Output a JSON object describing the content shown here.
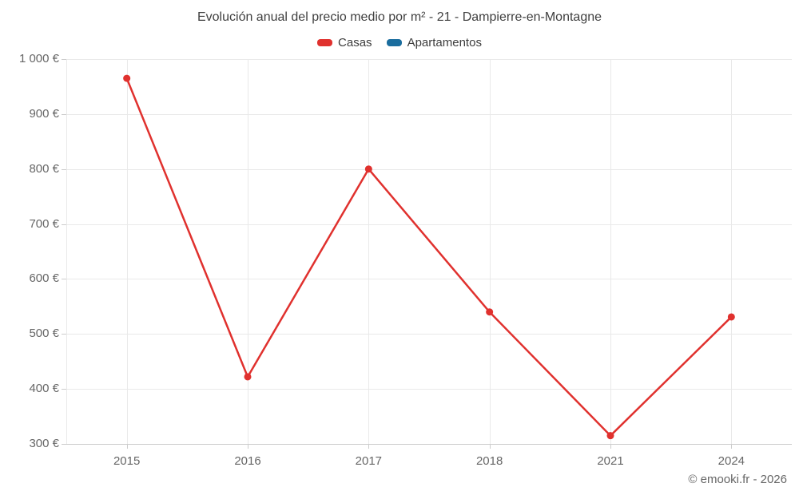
{
  "chart_data": {
    "type": "line",
    "title": "Evolución anual del precio medio por m² - 21 - Dampierre-en-Montagne",
    "categories": [
      "2015",
      "2016",
      "2017",
      "2018",
      "2021",
      "2024"
    ],
    "series": [
      {
        "name": "Casas",
        "color": "#e0312e",
        "values": [
          965,
          422,
          800,
          540,
          315,
          531
        ]
      },
      {
        "name": "Apartamentos",
        "color": "#1a6d9e",
        "values": []
      }
    ],
    "ylim": [
      300,
      1000
    ],
    "yticks": [
      {
        "value": 1000,
        "label": "1 000 €"
      },
      {
        "value": 900,
        "label": "900 €"
      },
      {
        "value": 800,
        "label": "800 €"
      },
      {
        "value": 700,
        "label": "700 €"
      },
      {
        "value": 600,
        "label": "600 €"
      },
      {
        "value": 500,
        "label": "500 €"
      },
      {
        "value": 400,
        "label": "400 €"
      },
      {
        "value": 300,
        "label": "300 €"
      }
    ],
    "grid": true,
    "legend_position": "top",
    "colors": {
      "grid": "#e9e9e9",
      "axis_line": "#cccccc",
      "axis_text": "#666666",
      "title_text": "#404040"
    }
  },
  "footer": {
    "credit": "© emooki.fr - 2026"
  }
}
